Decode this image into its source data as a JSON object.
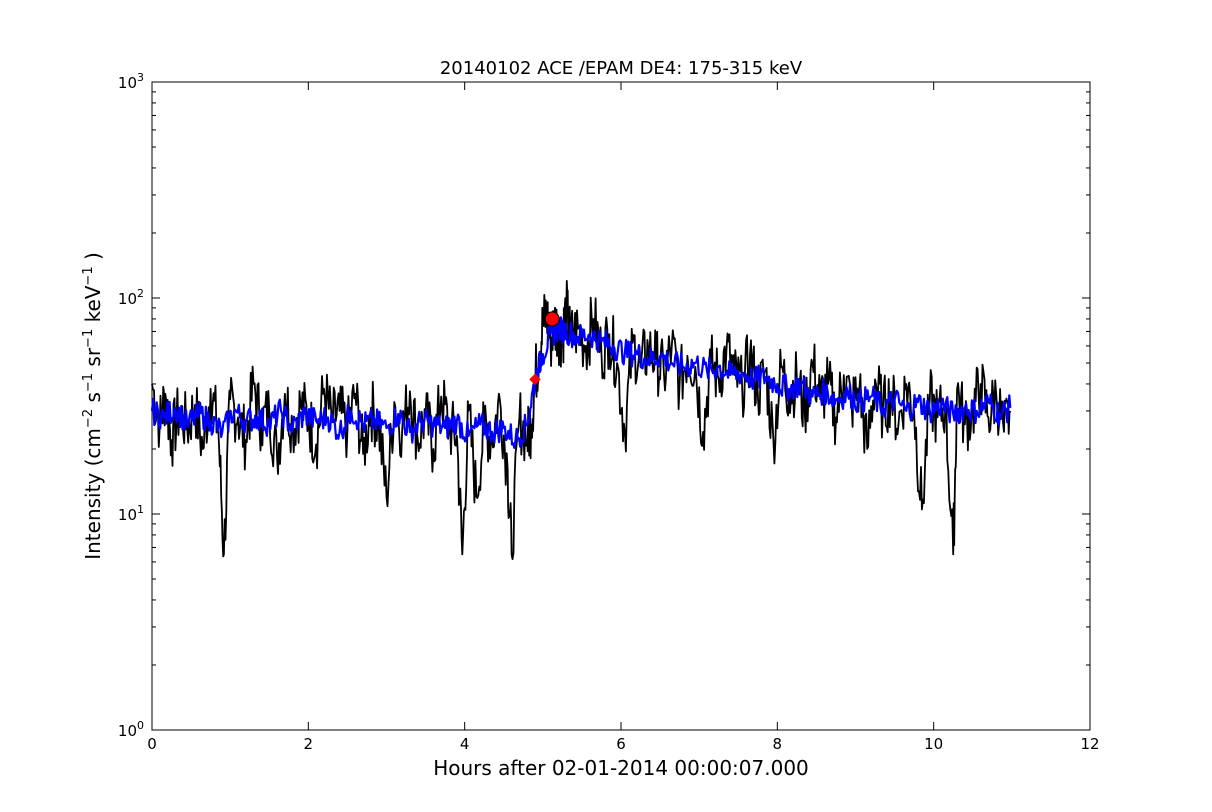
{
  "chart_data": {
    "type": "line",
    "title": "20140102 ACE /EPAM DE4: 175-315 keV",
    "xlabel": "Hours after 02-01-2014 00:00:07.000",
    "ylabel": {
      "parts": [
        {
          "t": "Intensity (cm",
          "sup": false
        },
        {
          "t": "−2",
          "sup": true
        },
        {
          "t": " s",
          "sup": false
        },
        {
          "t": "−1",
          "sup": true
        },
        {
          "t": " sr",
          "sup": false
        },
        {
          "t": "−1",
          "sup": true
        },
        {
          "t": " keV",
          "sup": false
        },
        {
          "t": "−1",
          "sup": true
        },
        {
          "t": " )",
          "sup": false
        }
      ]
    },
    "xlim": [
      0,
      12
    ],
    "ylim": [
      1,
      1000
    ],
    "yscale": "log",
    "grid": false,
    "xticks": [
      {
        "value": 0,
        "label": "0"
      },
      {
        "value": 2,
        "label": "2"
      },
      {
        "value": 4,
        "label": "4"
      },
      {
        "value": 6,
        "label": "6"
      },
      {
        "value": 8,
        "label": "8"
      },
      {
        "value": 10,
        "label": "10"
      },
      {
        "value": 12,
        "label": "12"
      }
    ],
    "yticks": [
      {
        "value": 1,
        "base": "10",
        "exp": "0"
      },
      {
        "value": 10,
        "base": "10",
        "exp": "1"
      },
      {
        "value": 100,
        "base": "10",
        "exp": "2"
      },
      {
        "value": 1000,
        "base": "10",
        "exp": "3"
      }
    ],
    "series": [
      {
        "color": "#000000",
        "x": [
          0.0,
          0.1,
          0.17,
          0.25,
          0.35,
          0.45,
          0.55,
          0.65,
          0.75,
          0.85,
          0.92,
          1.0,
          1.1,
          1.2,
          1.3,
          1.4,
          1.5,
          1.6,
          1.7,
          1.8,
          1.9,
          2.0,
          2.1,
          2.2,
          2.3,
          2.4,
          2.5,
          2.6,
          2.7,
          2.8,
          2.9,
          3.0,
          3.1,
          3.2,
          3.3,
          3.4,
          3.5,
          3.6,
          3.7,
          3.8,
          3.9,
          3.97,
          4.05,
          4.15,
          4.25,
          4.35,
          4.45,
          4.55,
          4.6,
          4.7,
          4.8,
          4.85,
          4.9,
          4.95,
          5.0,
          5.05,
          5.1,
          5.15,
          5.2,
          5.25,
          5.3,
          5.35,
          5.45,
          5.55,
          5.65,
          5.75,
          5.85,
          5.95,
          6.05,
          6.15,
          6.25,
          6.35,
          6.45,
          6.55,
          6.65,
          6.75,
          6.85,
          6.95,
          7.05,
          7.15,
          7.25,
          7.35,
          7.45,
          7.55,
          7.65,
          7.75,
          7.85,
          7.95,
          8.05,
          8.15,
          8.25,
          8.35,
          8.45,
          8.55,
          8.65,
          8.75,
          8.85,
          8.95,
          9.05,
          9.15,
          9.25,
          9.35,
          9.45,
          9.55,
          9.65,
          9.75,
          9.85,
          9.95,
          10.05,
          10.15,
          10.25,
          10.3,
          10.4,
          10.5,
          10.6,
          10.7,
          10.8,
          10.9,
          10.98
        ],
        "y": [
          40,
          26,
          36,
          22,
          30,
          25,
          32,
          20,
          38,
          24,
          6.5,
          34,
          28,
          22,
          40,
          26,
          30,
          18,
          36,
          25,
          32,
          28,
          21,
          38,
          27,
          30,
          24,
          36,
          19,
          31,
          26,
          12,
          33,
          24,
          37,
          22,
          29,
          20,
          35,
          25,
          23,
          6.5,
          30,
          12,
          26,
          22,
          34,
          16,
          6.5,
          28,
          22,
          26,
          42,
          55,
          75,
          85,
          62,
          78,
          70,
          65,
          90,
          66,
          72,
          60,
          80,
          55,
          68,
          50,
          24,
          62,
          48,
          58,
          52,
          44,
          60,
          40,
          54,
          48,
          24,
          50,
          42,
          58,
          44,
          38,
          55,
          36,
          46,
          22,
          48,
          36,
          42,
          30,
          50,
          34,
          40,
          28,
          44,
          32,
          38,
          20,
          42,
          30,
          36,
          26,
          40,
          30,
          10.5,
          34,
          28,
          32,
          6.5,
          38,
          26,
          30,
          40,
          28,
          36,
          24,
          30
        ]
      },
      {
        "color": "#0000ff",
        "x": [
          0.0,
          0.15,
          0.3,
          0.45,
          0.6,
          0.75,
          0.9,
          1.05,
          1.2,
          1.35,
          1.5,
          1.65,
          1.8,
          1.95,
          2.1,
          2.25,
          2.4,
          2.55,
          2.7,
          2.85,
          3.0,
          3.15,
          3.3,
          3.45,
          3.6,
          3.75,
          3.9,
          4.05,
          4.2,
          4.35,
          4.5,
          4.65,
          4.8,
          4.9,
          5.0,
          5.1,
          5.2,
          5.3,
          5.45,
          5.6,
          5.75,
          5.9,
          6.05,
          6.2,
          6.35,
          6.5,
          6.65,
          6.8,
          6.95,
          7.1,
          7.25,
          7.4,
          7.55,
          7.7,
          7.85,
          8.0,
          8.15,
          8.3,
          8.45,
          8.6,
          8.75,
          8.9,
          9.05,
          9.2,
          9.35,
          9.5,
          9.65,
          9.8,
          9.95,
          10.1,
          10.25,
          10.4,
          10.55,
          10.7,
          10.85,
          10.98
        ],
        "y": [
          30,
          28,
          31,
          26,
          29,
          27,
          24,
          30,
          27,
          28,
          26,
          30,
          25,
          29,
          27,
          28,
          24,
          30,
          26,
          27,
          25,
          29,
          24,
          27,
          26,
          25,
          27,
          23,
          26,
          24,
          25,
          22,
          26,
          42,
          55,
          68,
          72,
          70,
          66,
          68,
          63,
          60,
          56,
          55,
          52,
          54,
          50,
          48,
          50,
          46,
          48,
          44,
          45,
          42,
          43,
          40,
          38,
          40,
          35,
          37,
          34,
          36,
          33,
          35,
          31,
          34,
          30,
          33,
          30,
          32,
          29,
          31,
          30,
          33,
          29,
          31
        ]
      }
    ],
    "markers": [
      {
        "x": 4.9,
        "y": 42,
        "color": "#ff0000",
        "shape": "diamond",
        "size": "small"
      },
      {
        "x": 5.12,
        "y": 80,
        "color": "#ff0000",
        "shape": "circle",
        "size": "large"
      }
    ]
  }
}
